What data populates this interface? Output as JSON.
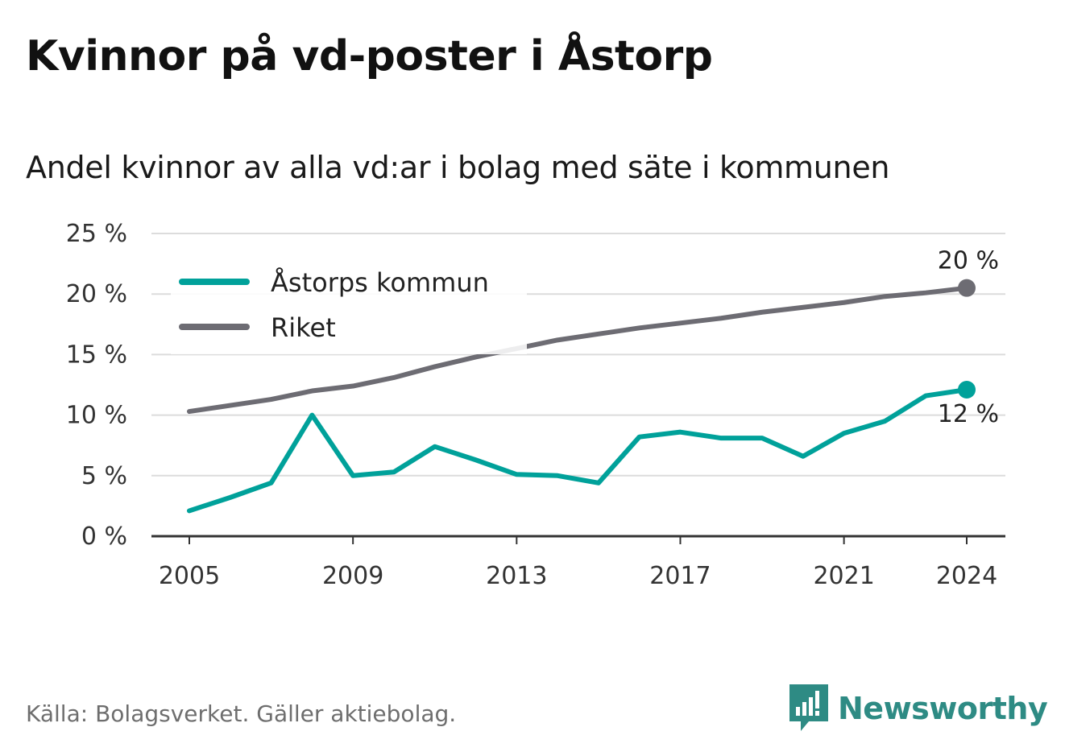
{
  "title": "Kvinnor på vd-poster i Åstorp",
  "subtitle": "Andel kvinnor av alla vd:ar i bolag med säte i kommunen",
  "source": "Källa: Bolagsverket. Gäller aktiebolag.",
  "brand": {
    "name": "Newsworthy",
    "icon": "newsworthy-logo-icon",
    "color": "#2e8b84"
  },
  "chart_data": {
    "type": "line",
    "x": [
      2005,
      2006,
      2007,
      2008,
      2009,
      2010,
      2011,
      2012,
      2013,
      2014,
      2015,
      2016,
      2017,
      2018,
      2019,
      2020,
      2021,
      2022,
      2023,
      2024
    ],
    "xticks": [
      "2005",
      "2009",
      "2013",
      "2017",
      "2021",
      "2024"
    ],
    "yticks": [
      "0 %",
      "5 %",
      "10 %",
      "15 %",
      "20 %",
      "25 %"
    ],
    "ylim": [
      0,
      25
    ],
    "grid": true,
    "legend_position": "top-left",
    "series": [
      {
        "name": "Åstorps kommun",
        "color": "#00a19a",
        "values": [
          2.1,
          3.2,
          4.4,
          10.0,
          5.0,
          5.3,
          7.4,
          6.3,
          5.1,
          5.0,
          4.4,
          8.2,
          8.6,
          8.1,
          8.1,
          6.6,
          8.5,
          9.5,
          11.6,
          12.1
        ],
        "end_label": "12 %"
      },
      {
        "name": "Riket",
        "color": "#6d6c73",
        "values": [
          10.3,
          10.8,
          11.3,
          12.0,
          12.4,
          13.1,
          14.0,
          14.8,
          15.5,
          16.2,
          16.7,
          17.2,
          17.6,
          18.0,
          18.5,
          18.9,
          19.3,
          19.8,
          20.1,
          20.5
        ],
        "end_label": "20 %"
      }
    ]
  }
}
